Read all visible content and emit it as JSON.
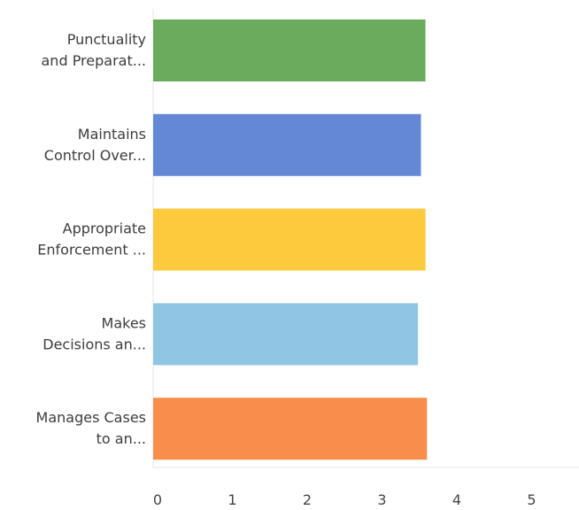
{
  "chart_data": {
    "type": "bar",
    "orientation": "horizontal",
    "categories": [
      [
        "Punctuality",
        "and Preparat..."
      ],
      [
        "Maintains",
        "Control Over..."
      ],
      [
        "Appropriate",
        "Enforcement ..."
      ],
      [
        "Makes",
        "Decisions an..."
      ],
      [
        "Manages Cases",
        "to an..."
      ]
    ],
    "values": [
      3.64,
      3.58,
      3.64,
      3.54,
      3.66
    ],
    "colors": [
      "#6aab5e",
      "#6588d6",
      "#fdca3e",
      "#90c6e4",
      "#f98d4b"
    ],
    "xlim": [
      0,
      5.6
    ],
    "xticks": [
      "0",
      "1",
      "2",
      "3",
      "4",
      "5"
    ],
    "grid": false,
    "legend": "none"
  }
}
